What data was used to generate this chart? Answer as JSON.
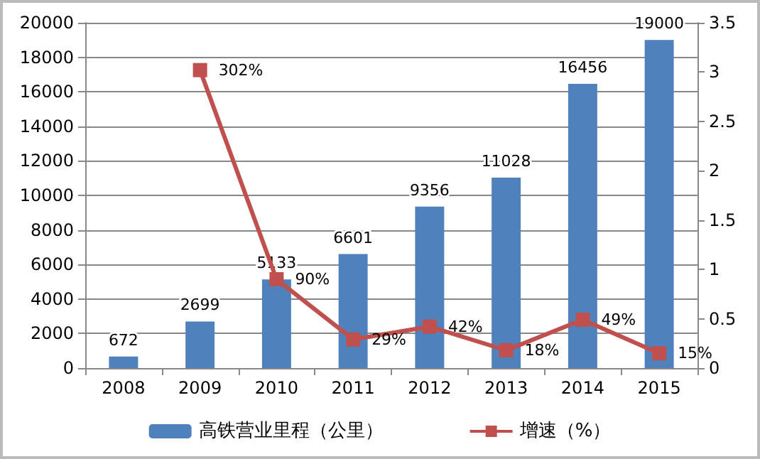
{
  "chart_data": {
    "type": "bar",
    "categories": [
      "2008",
      "2009",
      "2010",
      "2011",
      "2012",
      "2013",
      "2014",
      "2015"
    ],
    "series": [
      {
        "name": "高铁营业里程（公里）",
        "color": "#4f81bd",
        "values": [
          672,
          2699,
          5133,
          6601,
          9356,
          11028,
          16456,
          19000
        ],
        "value_labels": [
          "672",
          "2699",
          "5133",
          "6601",
          "9356",
          "11028",
          "16456",
          "19000"
        ]
      },
      {
        "name": "增速（%）",
        "type": "line",
        "axis": "y2",
        "color": "#c0504d",
        "values": [
          null,
          3.02,
          0.9,
          0.29,
          0.42,
          0.18,
          0.49,
          0.15
        ],
        "value_labels": [
          null,
          "302%",
          "90%",
          "29%",
          "42%",
          "18%",
          "49%",
          "15%"
        ]
      }
    ],
    "ylim": [
      0,
      20000
    ],
    "yticks": [
      0,
      2000,
      4000,
      6000,
      8000,
      10000,
      12000,
      14000,
      16000,
      18000,
      20000
    ],
    "y2lim": [
      0,
      3.5
    ],
    "y2ticks": [
      0,
      0.5,
      1,
      1.5,
      2,
      2.5,
      3,
      3.5
    ],
    "grid": "y",
    "legend": "bottom",
    "marker": "square"
  }
}
